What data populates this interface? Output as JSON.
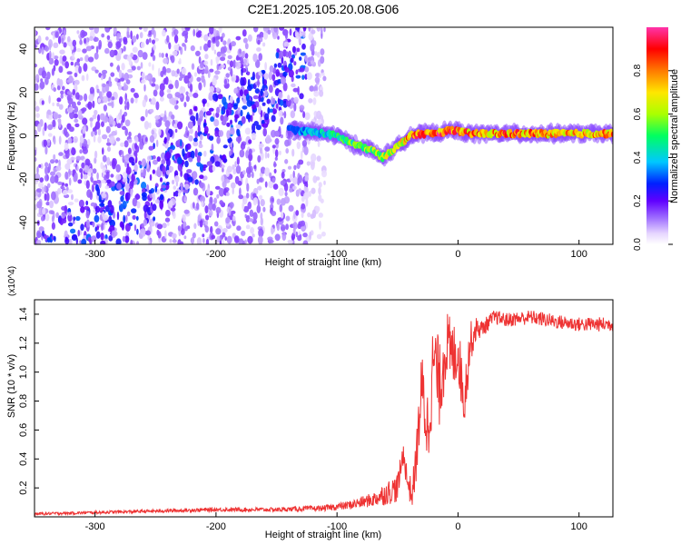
{
  "title": "C2E1.2025.105.20.08.G06",
  "colors": {
    "snr_line": "#ee3333",
    "dot_scatter": "#7a00ff",
    "colormap": [
      "#ffffff",
      "#e6d6ff",
      "#a070ff",
      "#6000ff",
      "#0020ff",
      "#00c8ff",
      "#00ff60",
      "#aaff00",
      "#ffe600",
      "#ff7a00",
      "#ff0000",
      "#ff33aa"
    ]
  },
  "chart_data": [
    {
      "type": "heatmap",
      "title": "C2E1.2025.105.20.08.G06",
      "xlabel": "Height of straight line (km)",
      "ylabel": "Frequency (Hz)",
      "xlim": [
        -350,
        128
      ],
      "ylim": [
        -50,
        50
      ],
      "xticks": [
        -300,
        -200,
        -100,
        0,
        100
      ],
      "yticks": [
        -40,
        -20,
        0,
        20,
        40
      ],
      "colorbar": {
        "label": "Normalized spectral amplitude",
        "range": [
          0,
          1
        ],
        "ticks": [
          "0.0",
          "0.2",
          "0.4",
          "0.6",
          "0.8"
        ]
      },
      "noise_region": {
        "x_range": [
          -350,
          -110
        ],
        "freq_range": [
          -50,
          50
        ]
      },
      "ridge": {
        "x": [
          -140,
          -125,
          -110,
          -100,
          -90,
          -80,
          -70,
          -62,
          -58,
          -50,
          -40,
          -30,
          -20,
          -10,
          -5,
          0,
          10,
          40,
          80,
          128
        ],
        "freq": [
          3,
          2,
          1,
          0,
          -3,
          -5,
          -7,
          -10,
          -8,
          -5,
          0,
          1,
          1,
          2,
          3,
          2,
          1,
          1,
          1,
          1
        ],
        "amplitude": [
          0.3,
          0.4,
          0.45,
          0.5,
          0.55,
          0.6,
          0.65,
          0.65,
          0.7,
          0.7,
          0.85,
          0.9,
          0.9,
          0.95,
          0.95,
          0.9,
          0.85,
          0.85,
          0.85,
          0.8
        ]
      },
      "grid": false,
      "legend": "right"
    },
    {
      "type": "line",
      "xlabel": "Height of straight line (km)",
      "ylabel": "SNR (10 * v/v)",
      "y_multiplier": "(x10^4)",
      "xlim": [
        -350,
        128
      ],
      "ylim": [
        0,
        1.5
      ],
      "xticks": [
        -300,
        -200,
        -100,
        0,
        100
      ],
      "yticks": [
        "0.2",
        "0.4",
        "0.6",
        "0.8",
        "1.0",
        "1.2",
        "1.4"
      ],
      "series": [
        {
          "x": [
            -350,
            -300,
            -250,
            -200,
            -150,
            -110,
            -90,
            -70,
            -60,
            -50,
            -45,
            -42,
            -38,
            -35,
            -30,
            -25,
            -20,
            -15,
            -10,
            -5,
            0,
            5,
            10,
            15,
            20,
            30,
            40,
            60,
            80,
            100,
            128
          ],
          "y": [
            0.02,
            0.03,
            0.04,
            0.05,
            0.05,
            0.06,
            0.08,
            0.12,
            0.16,
            0.2,
            0.45,
            0.25,
            0.15,
            0.35,
            0.9,
            0.6,
            1.1,
            0.9,
            1.2,
            1.1,
            1.15,
            0.8,
            1.2,
            1.3,
            1.3,
            1.38,
            1.36,
            1.38,
            1.35,
            1.33,
            1.33
          ],
          "noise_amplitude": [
            0.01,
            0.01,
            0.012,
            0.014,
            0.015,
            0.02,
            0.03,
            0.05,
            0.08,
            0.1,
            0.08,
            0.1,
            0.1,
            0.15,
            0.25,
            0.3,
            0.3,
            0.3,
            0.25,
            0.25,
            0.2,
            0.2,
            0.15,
            0.08,
            0.06,
            0.05,
            0.05,
            0.05,
            0.05,
            0.05,
            0.05
          ]
        }
      ],
      "grid": false
    }
  ]
}
